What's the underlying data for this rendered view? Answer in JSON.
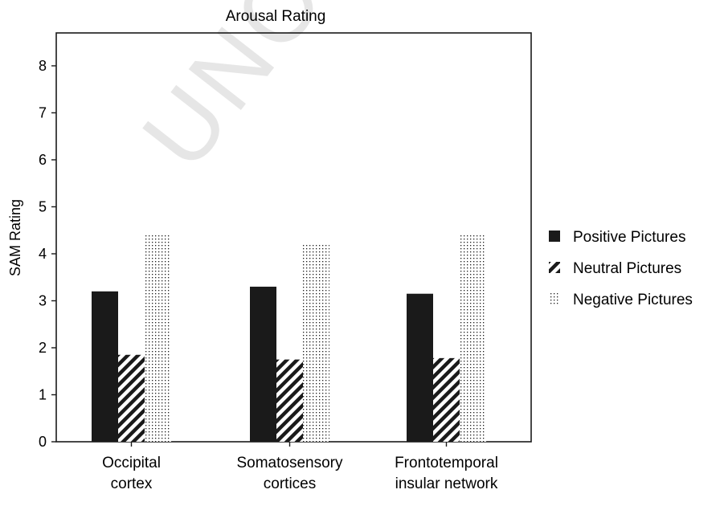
{
  "watermark": "UNCO",
  "chart_data": {
    "type": "bar",
    "title": "Arousal Rating",
    "xlabel": "",
    "ylabel": "SAM Rating",
    "ylim": [
      0,
      8.7
    ],
    "yticks": [
      0,
      1,
      2,
      3,
      4,
      5,
      6,
      7,
      8
    ],
    "grid": false,
    "legend_position": "right",
    "categories": [
      [
        "Occipital",
        "cortex"
      ],
      [
        "Somatosensory",
        "cortices"
      ],
      [
        "Frontotemporal",
        "insular network"
      ]
    ],
    "series": [
      {
        "name": "Positive Pictures",
        "pattern": "solid",
        "color": "#1a1a1a",
        "values": [
          3.2,
          3.3,
          3.15
        ]
      },
      {
        "name": "Neutral Pictures",
        "pattern": "diagonal-stripes",
        "color": "#1a1a1a",
        "values": [
          1.85,
          1.75,
          1.78
        ]
      },
      {
        "name": "Negative Pictures",
        "pattern": "dots",
        "color": "#1a1a1a",
        "values": [
          4.4,
          4.2,
          4.4
        ]
      }
    ]
  }
}
